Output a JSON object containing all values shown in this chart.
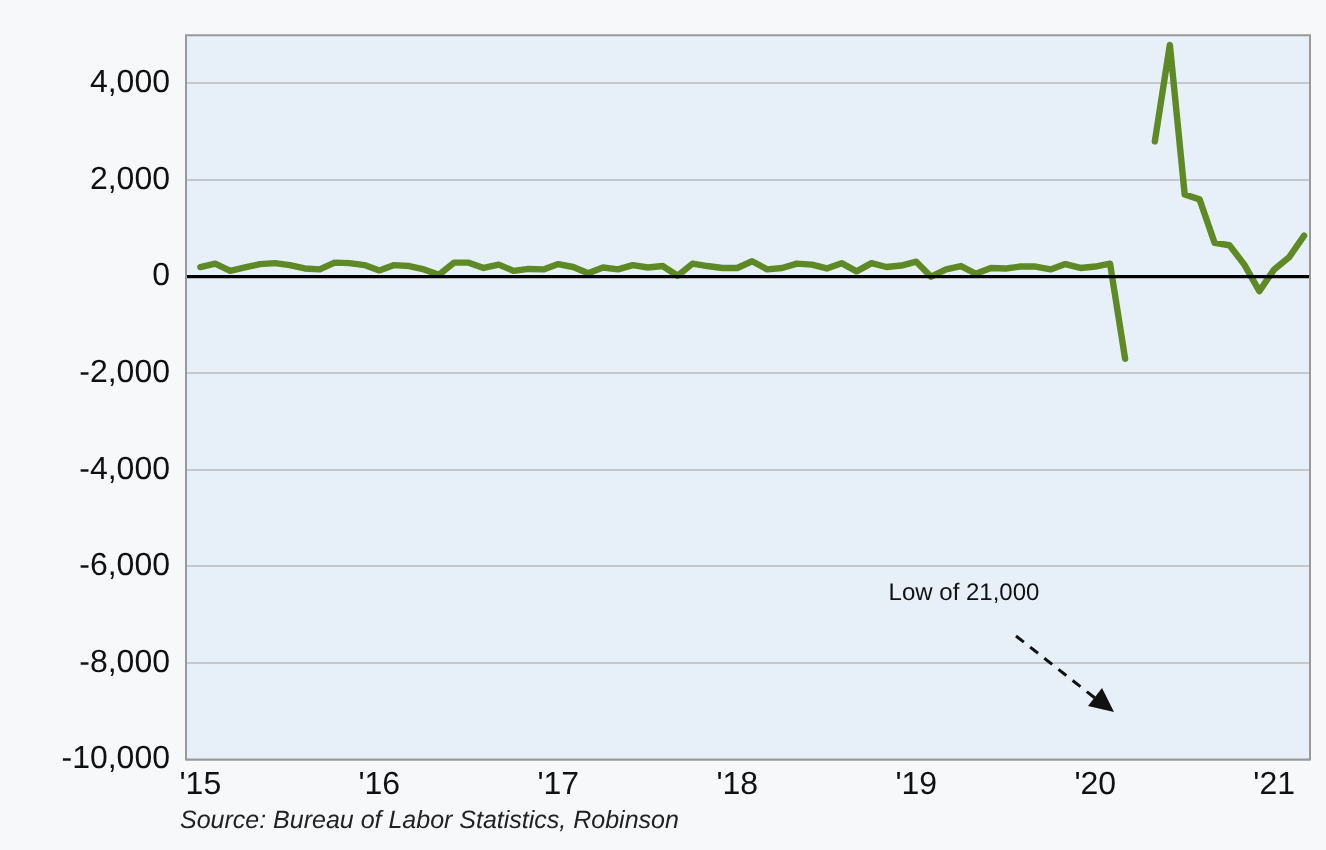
{
  "chart_data": {
    "type": "line",
    "x": [
      2015,
      2015.083,
      2015.167,
      2015.25,
      2015.333,
      2015.417,
      2015.5,
      2015.583,
      2015.667,
      2015.75,
      2015.833,
      2015.917,
      2016,
      2016.083,
      2016.167,
      2016.25,
      2016.333,
      2016.417,
      2016.5,
      2016.583,
      2016.667,
      2016.75,
      2016.833,
      2016.917,
      2017,
      2017.083,
      2017.167,
      2017.25,
      2017.333,
      2017.417,
      2017.5,
      2017.583,
      2017.667,
      2017.75,
      2017.833,
      2017.917,
      2018,
      2018.083,
      2018.167,
      2018.25,
      2018.333,
      2018.417,
      2018.5,
      2018.583,
      2018.667,
      2018.75,
      2018.833,
      2018.917,
      2019,
      2019.083,
      2019.167,
      2019.25,
      2019.333,
      2019.417,
      2019.5,
      2019.583,
      2019.667,
      2019.75,
      2019.833,
      2019.917,
      2020,
      2020.083,
      2020.167,
      2020.25,
      2020.333,
      2020.417,
      2020.5,
      2020.583,
      2020.667,
      2020.75,
      2020.833,
      2020.917,
      2021,
      2021.083,
      2021.167
    ],
    "series": [
      {
        "color": "#5e8a25",
        "values": [
          200,
          270,
          120,
          190,
          260,
          280,
          240,
          170,
          150,
          290,
          280,
          240,
          130,
          240,
          220,
          150,
          40,
          290,
          290,
          180,
          250,
          120,
          160,
          150,
          260,
          200,
          70,
          190,
          150,
          240,
          190,
          220,
          20,
          270,
          220,
          180,
          180,
          320,
          150,
          180,
          270,
          250,
          170,
          280,
          110,
          280,
          200,
          230,
          310,
          0,
          150,
          220,
          60,
          180,
          170,
          210,
          210,
          150,
          260,
          180,
          210,
          270,
          -1700,
          null,
          2800,
          4800,
          1700,
          1600,
          700,
          650,
          250,
          -300,
          150,
          400,
          850
        ]
      }
    ],
    "xlim": [
      2014.92,
      2021.2
    ],
    "xticks": [
      {
        "value": 2015,
        "label": "'15"
      },
      {
        "value": 2016,
        "label": "'16"
      },
      {
        "value": 2017,
        "label": "'17"
      },
      {
        "value": 2018,
        "label": "'18"
      },
      {
        "value": 2019,
        "label": "'19"
      },
      {
        "value": 2020,
        "label": "'20"
      },
      {
        "value": 2021,
        "label": "'21"
      }
    ],
    "ylim": [
      -10000,
      5000
    ],
    "yticks": [
      {
        "value": -10000,
        "label": "-10,000"
      },
      {
        "value": -8000,
        "label": "-8,000"
      },
      {
        "value": -6000,
        "label": "-6,000"
      },
      {
        "value": -4000,
        "label": "-4,000"
      },
      {
        "value": -2000,
        "label": "-2,000"
      },
      {
        "value": 0,
        "label": "0"
      },
      {
        "value": 2000,
        "label": "2,000"
      },
      {
        "value": 4000,
        "label": "4,000"
      }
    ],
    "ref_lines": [
      {
        "axis": "y",
        "value": 0,
        "color": "#000000"
      }
    ],
    "grid": "y",
    "legend": false,
    "marker": "none",
    "line_style": "solid",
    "annotations": [
      "Low of 21,000",
      "Source: Bureau of Labor Statistics, Robinson"
    ]
  }
}
